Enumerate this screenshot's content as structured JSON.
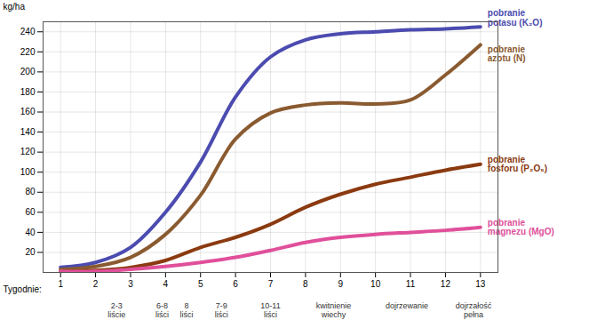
{
  "chart_data": {
    "type": "line",
    "x_label": "Tygodnie:",
    "y_label": "kg/ha",
    "x": [
      1,
      2,
      3,
      4,
      5,
      6,
      7,
      8,
      9,
      10,
      11,
      12,
      13
    ],
    "xlim": [
      0.5,
      13.5
    ],
    "xticks": [
      1,
      2,
      3,
      4,
      5,
      6,
      7,
      8,
      9,
      10,
      11,
      12,
      13
    ],
    "ylim": [
      0,
      250
    ],
    "yticks": [
      20,
      40,
      60,
      80,
      100,
      120,
      140,
      160,
      180,
      200,
      220,
      240
    ],
    "grid": true,
    "series": [
      {
        "name": "pobranie\npotasu (K₂O)",
        "color": "#4b4bb0",
        "values": [
          5,
          10,
          25,
          60,
          110,
          175,
          215,
          232,
          238,
          240,
          242,
          243,
          245
        ]
      },
      {
        "name": "pobranie\nazotu (N)",
        "color": "#8a5a30",
        "values": [
          3,
          6,
          15,
          38,
          77,
          133,
          159,
          167,
          169,
          168,
          172,
          197,
          227
        ]
      },
      {
        "name": "pobranie\nfosforu (P₂O₅)",
        "color": "#8b3a10",
        "values": [
          1,
          2,
          5,
          12,
          25,
          35,
          48,
          65,
          78,
          88,
          95,
          102,
          108
        ]
      },
      {
        "name": "pobranie\nmagnezu (MgO)",
        "color": "#e0509a",
        "values": [
          1,
          1,
          3,
          6,
          10,
          15,
          22,
          30,
          35,
          38,
          40,
          42,
          45
        ]
      }
    ],
    "annotations": [
      {
        "x": 2.6,
        "text": "2-3\nliście"
      },
      {
        "x": 3.9,
        "text": "6-8\nliści"
      },
      {
        "x": 4.6,
        "text": "8\nliści"
      },
      {
        "x": 5.6,
        "text": "7-9\nliści"
      },
      {
        "x": 7,
        "text": "10-11\nliści"
      },
      {
        "x": 8.8,
        "text": "kwitnienie\nwiechy"
      },
      {
        "x": 10.9,
        "text": "dojrzewanie"
      },
      {
        "x": 12.8,
        "text": "dojrzałość\npełna"
      }
    ]
  }
}
